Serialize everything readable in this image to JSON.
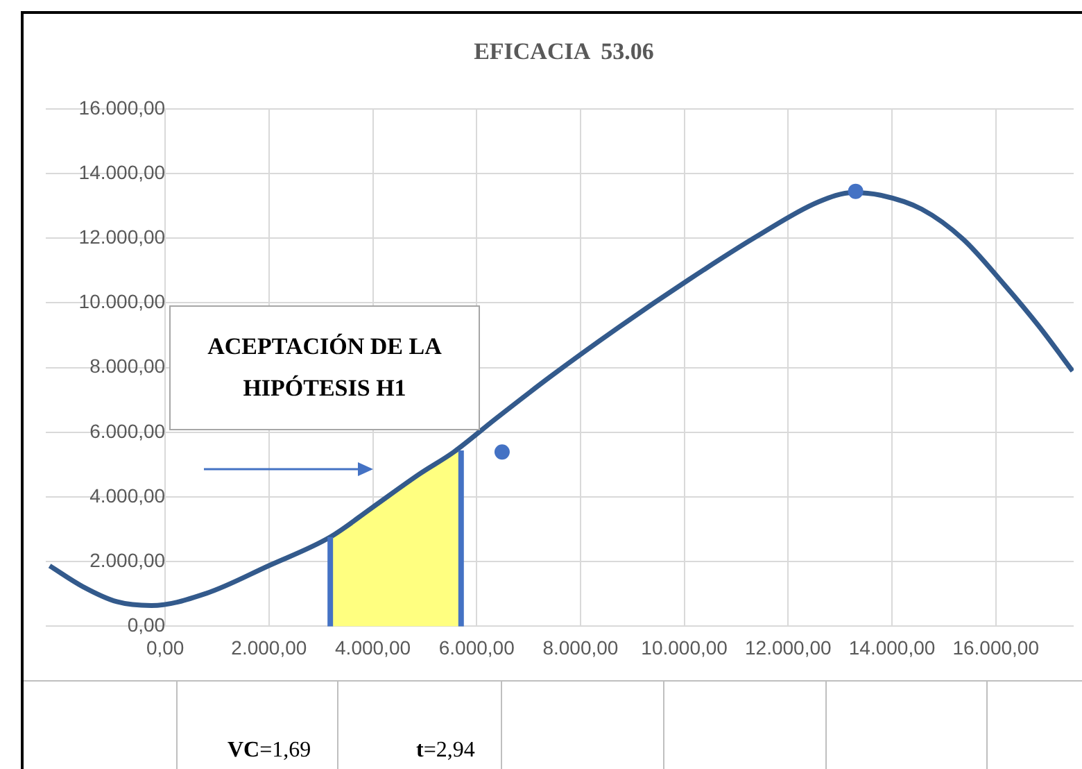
{
  "chart_data": {
    "type": "line",
    "title": "EFICACIA  53.06",
    "series": [
      {
        "marker": "none",
        "color": "#335a8c",
        "x": [
          -2225,
          -1590,
          -930,
          -265,
          795,
          1990,
          3180,
          3970,
          4900,
          5560,
          6360,
          7420,
          8740,
          10070,
          11390,
          12580,
          13250,
          13780,
          14570,
          15370,
          16160,
          16820,
          17480
        ],
        "values": [
          1870,
          1230,
          760,
          640,
          1020,
          1870,
          2760,
          3650,
          4710,
          5390,
          6410,
          7720,
          9250,
          10700,
          12050,
          13120,
          13410,
          13330,
          12900,
          11970,
          10570,
          9300,
          7890
        ]
      },
      {
        "type": "scatter",
        "color": "#4472c4",
        "x": [
          6490,
          13300
        ],
        "values": [
          5390,
          13450
        ]
      },
      {
        "type": "area",
        "marker": "none",
        "color": "#ffff80",
        "x": [
          3180,
          3970,
          4900,
          5560,
          5700
        ],
        "values": [
          2760,
          3650,
          4710,
          5390,
          5440
        ]
      }
    ],
    "xlim": [
      -2300,
      17500
    ],
    "xticks": [
      {
        "value": 0,
        "label": "0,00"
      },
      {
        "value": 2000,
        "label": "2.000,00"
      },
      {
        "value": 4000,
        "label": "4.000,00"
      },
      {
        "value": 6000,
        "label": "6.000,00"
      },
      {
        "value": 8000,
        "label": "8.000,00"
      },
      {
        "value": 10000,
        "label": "10.000,00"
      },
      {
        "value": 12000,
        "label": "12.000,00"
      },
      {
        "value": 14000,
        "label": "14.000,00"
      },
      {
        "value": 16000,
        "label": "16.000,00"
      }
    ],
    "ylim": [
      0,
      16000
    ],
    "yticks": [
      {
        "value": 0,
        "label": "0,00"
      },
      {
        "value": 2000,
        "label": "2.000,00"
      },
      {
        "value": 4000,
        "label": "4.000,00"
      },
      {
        "value": 6000,
        "label": "6.000,00"
      },
      {
        "value": 8000,
        "label": "8.000,00"
      },
      {
        "value": 10000,
        "label": "10.000,00"
      },
      {
        "value": 12000,
        "label": "12.000,00"
      },
      {
        "value": 14000,
        "label": "14.000,00"
      },
      {
        "value": 16000,
        "label": "16.000,00"
      }
    ],
    "ref_lines": [
      {
        "axis": "x",
        "value": 3180,
        "color": "#4472c4"
      },
      {
        "axis": "x",
        "value": 5700,
        "color": "#4472c4"
      }
    ],
    "annotations": [
      "ACEPTACIÓN DE LA HIPÓTESIS H1",
      "VC=1,69",
      "t=2,94"
    ],
    "grid": true,
    "legend": false,
    "marker": "circle",
    "line_style": "solid"
  }
}
